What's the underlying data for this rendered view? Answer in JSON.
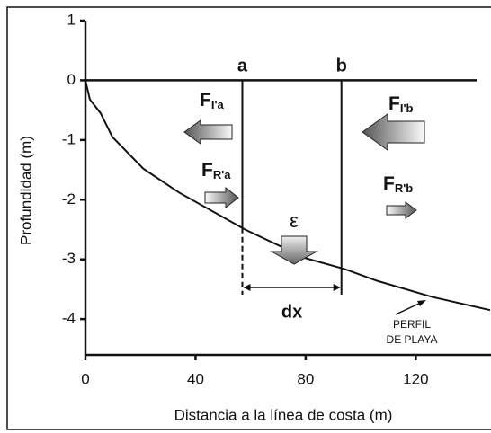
{
  "chart_data": {
    "type": "line",
    "y_label": "Profundidad (m)",
    "x_label": "Distancia a la línea de costa (m)",
    "x": [
      0,
      1.6,
      5.5,
      9.8,
      21,
      34,
      58,
      80,
      94,
      106,
      126,
      147
    ],
    "series": [
      {
        "name": "PERFIL DE PLAYA",
        "color": "#111111",
        "values": [
          0,
          -0.32,
          -0.55,
          -0.95,
          -1.48,
          -1.88,
          -2.5,
          -2.98,
          -3.16,
          -3.36,
          -3.63,
          -3.85
        ]
      }
    ],
    "xlim": [
      0,
      147
    ],
    "ylim": [
      -4.6,
      1
    ],
    "xticks": [
      0,
      40,
      80,
      120
    ],
    "yticks": [
      1,
      0,
      -1,
      -2,
      -3,
      -4
    ],
    "sections": [
      {
        "label": "a",
        "x": 57
      },
      {
        "label": "b",
        "x": 93
      }
    ],
    "dx_label": "dx",
    "forces": [
      {
        "main": "F",
        "sub": "I'a"
      },
      {
        "main": "F",
        "sub": "R'a"
      },
      {
        "main": "F",
        "sub": "I'b"
      },
      {
        "main": "F",
        "sub": "R'b"
      }
    ],
    "epsilon": "ε",
    "profile_label": [
      "PERFIL",
      "DE PLAYA"
    ]
  }
}
